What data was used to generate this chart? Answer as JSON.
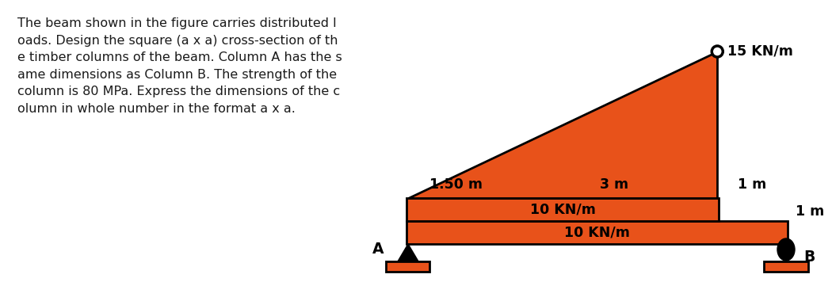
{
  "bg_color": "#ffffff",
  "orange": "#E8521A",
  "black": "#000000",
  "text_color": "#1a1a1a",
  "problem_text": "The beam shown in the figure carries distributed l\noads. Design the square (a x a) cross-section of th\ne timber columns of the beam. Column A has the s\name dimensions as Column B. The strength of the\ncolumn is 80 MPa. Express the dimensions of the c\nolumn in whole number in the format a x a.",
  "label_1m_right": "1 m",
  "label_1m_vert": "1 m",
  "label_3m": "3 m",
  "label_150m": "1.50 m",
  "label_15kn": "15 KN/m",
  "label_10kn_top": "10 KN/m",
  "label_10kn_bot": "10 KN/m",
  "label_A": "A",
  "label_B": "B",
  "text_fontsize": 11.5,
  "label_fontsize": 12.5
}
